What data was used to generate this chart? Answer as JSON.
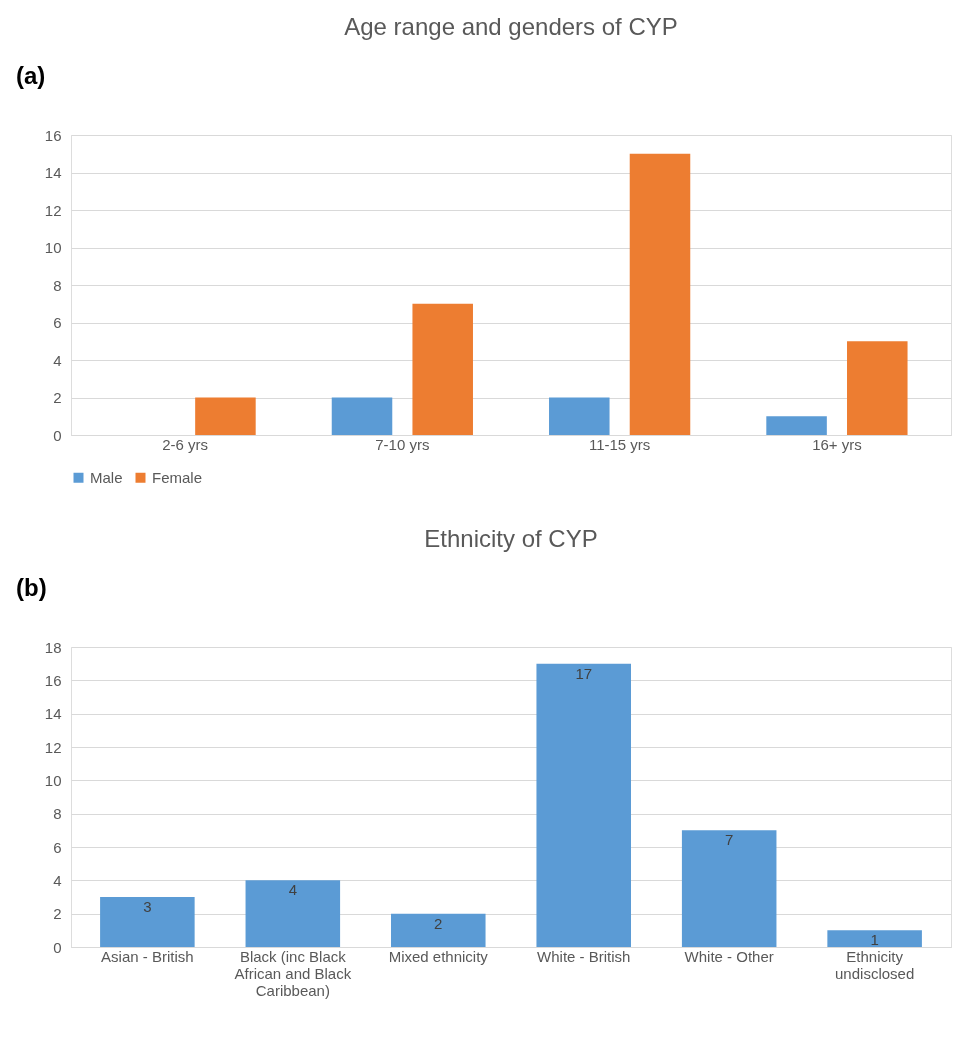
{
  "chart_data": [
    {
      "type": "bar",
      "title": "Age range and genders of CYP",
      "annotations": [
        "(a)"
      ],
      "categories": [
        "2-6 yrs",
        "7-10 yrs",
        "11-15 yrs",
        "16+ yrs"
      ],
      "series": [
        {
          "name": "Male",
          "color": "#5b9bd5",
          "values": [
            0,
            2,
            2,
            1
          ]
        },
        {
          "name": "Female",
          "color": "#ed7d31",
          "values": [
            2,
            7,
            15,
            5
          ]
        }
      ],
      "ylim": [
        0,
        16
      ],
      "yticks": [
        0,
        2,
        4,
        6,
        8,
        10,
        12,
        14,
        16
      ],
      "grid": "y",
      "legend": "bottom"
    },
    {
      "type": "bar",
      "title": "Ethnicity of CYP",
      "annotations": [
        "(b)"
      ],
      "categories": [
        "Asian - British",
        "Black (inc Black African and Black Caribbean)",
        "Mixed ethnicity",
        "White - British",
        "White - Other",
        "Ethnicity undisclosed"
      ],
      "values": [
        3,
        4,
        2,
        17,
        7,
        1
      ],
      "color": "#5b9bd5",
      "ylim": [
        0,
        18
      ],
      "yticks": [
        0,
        2,
        4,
        6,
        8,
        10,
        12,
        14,
        16,
        18
      ],
      "grid": "y",
      "data_labels": true
    }
  ]
}
